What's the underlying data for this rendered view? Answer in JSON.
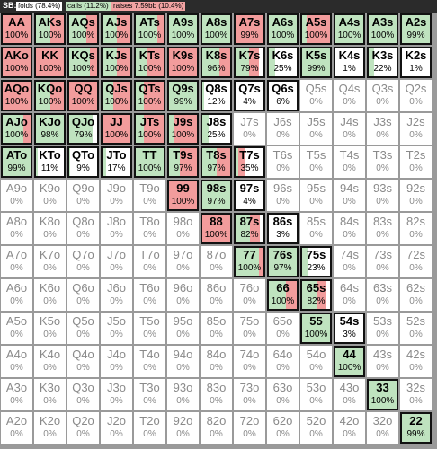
{
  "header": {
    "position_label": "SB:",
    "legend": [
      {
        "label": "folds (78.4%)",
        "color": "#ffffff"
      },
      {
        "label": "calls (11.2%)",
        "color": "#bfe3bf"
      },
      {
        "label": "raises 7.59bb (10.4%)",
        "color": "#f2a3a3"
      }
    ]
  },
  "colors": {
    "call": "#bfe3bf",
    "raise": "#f29c9c",
    "fold": "#ffffff"
  },
  "cells": [
    [
      {
        "hand": "AA",
        "pct": "100%",
        "c": 0,
        "r": 1
      },
      {
        "hand": "AKs",
        "pct": "100%",
        "c": 0.5,
        "r": 0.5
      },
      {
        "hand": "AQs",
        "pct": "100%",
        "c": 0.6,
        "r": 0.4
      },
      {
        "hand": "AJs",
        "pct": "100%",
        "c": 0.5,
        "r": 0.5
      },
      {
        "hand": "ATs",
        "pct": "100%",
        "c": 0.75,
        "r": 0.25
      },
      {
        "hand": "A9s",
        "pct": "100%",
        "c": 1,
        "r": 0
      },
      {
        "hand": "A8s",
        "pct": "100%",
        "c": 1,
        "r": 0
      },
      {
        "hand": "A7s",
        "pct": "99%",
        "c": 0,
        "r": 0.99
      },
      {
        "hand": "A6s",
        "pct": "100%",
        "c": 1,
        "r": 0
      },
      {
        "hand": "A5s",
        "pct": "100%",
        "c": 0.2,
        "r": 0.8
      },
      {
        "hand": "A4s",
        "pct": "100%",
        "c": 1,
        "r": 0
      },
      {
        "hand": "A3s",
        "pct": "100%",
        "c": 1,
        "r": 0
      },
      {
        "hand": "A2s",
        "pct": "99%",
        "c": 0.99,
        "r": 0
      }
    ],
    [
      {
        "hand": "AKo",
        "pct": "100%",
        "c": 0,
        "r": 1
      },
      {
        "hand": "KK",
        "pct": "100%",
        "c": 0,
        "r": 1
      },
      {
        "hand": "KQs",
        "pct": "100%",
        "c": 0.7,
        "r": 0.3
      },
      {
        "hand": "KJs",
        "pct": "100%",
        "c": 0.5,
        "r": 0.5
      },
      {
        "hand": "KTs",
        "pct": "100%",
        "c": 0.4,
        "r": 0.6
      },
      {
        "hand": "K9s",
        "pct": "100%",
        "c": 0,
        "r": 1
      },
      {
        "hand": "K8s",
        "pct": "96%",
        "c": 0.6,
        "r": 0.36
      },
      {
        "hand": "K7s",
        "pct": "79%",
        "c": 0.49,
        "r": 0.3
      },
      {
        "hand": "K6s",
        "pct": "25%",
        "c": 0.25,
        "r": 0
      },
      {
        "hand": "K5s",
        "pct": "99%",
        "c": 0.99,
        "r": 0
      },
      {
        "hand": "K4s",
        "pct": "1%",
        "c": 0.01,
        "r": 0
      },
      {
        "hand": "K3s",
        "pct": "22%",
        "c": 0.22,
        "r": 0
      },
      {
        "hand": "K2s",
        "pct": "1%",
        "c": 0.01,
        "r": 0
      }
    ],
    [
      {
        "hand": "AQo",
        "pct": "100%",
        "c": 0,
        "r": 1
      },
      {
        "hand": "KQo",
        "pct": "100%",
        "c": 0.5,
        "r": 0.5
      },
      {
        "hand": "QQ",
        "pct": "100%",
        "c": 0,
        "r": 1
      },
      {
        "hand": "QJs",
        "pct": "100%",
        "c": 0.4,
        "r": 0.6
      },
      {
        "hand": "QTs",
        "pct": "100%",
        "c": 0.3,
        "r": 0.7
      },
      {
        "hand": "Q9s",
        "pct": "99%",
        "c": 0.99,
        "r": 0
      },
      {
        "hand": "Q8s",
        "pct": "12%",
        "c": 0.12,
        "r": 0
      },
      {
        "hand": "Q7s",
        "pct": "4%",
        "c": 0.04,
        "r": 0
      },
      {
        "hand": "Q6s",
        "pct": "6%",
        "c": 0.06,
        "r": 0
      },
      {
        "hand": "Q5s",
        "pct": "0%",
        "c": 0,
        "r": 0
      },
      {
        "hand": "Q4s",
        "pct": "0%",
        "c": 0,
        "r": 0
      },
      {
        "hand": "Q3s",
        "pct": "0%",
        "c": 0,
        "r": 0
      },
      {
        "hand": "Q2s",
        "pct": "0%",
        "c": 0,
        "r": 0
      }
    ],
    [
      {
        "hand": "AJo",
        "pct": "100%",
        "c": 0.7,
        "r": 0.3
      },
      {
        "hand": "KJo",
        "pct": "98%",
        "c": 0.98,
        "r": 0
      },
      {
        "hand": "QJo",
        "pct": "79%",
        "c": 0.79,
        "r": 0
      },
      {
        "hand": "JJ",
        "pct": "100%",
        "c": 0,
        "r": 1
      },
      {
        "hand": "JTs",
        "pct": "100%",
        "c": 0.3,
        "r": 0.7
      },
      {
        "hand": "J9s",
        "pct": "100%",
        "c": 0.2,
        "r": 0.8
      },
      {
        "hand": "J8s",
        "pct": "25%",
        "c": 0.25,
        "r": 0
      },
      {
        "hand": "J7s",
        "pct": "0%",
        "c": 0,
        "r": 0
      },
      {
        "hand": "J6s",
        "pct": "0%",
        "c": 0,
        "r": 0
      },
      {
        "hand": "J5s",
        "pct": "0%",
        "c": 0,
        "r": 0
      },
      {
        "hand": "J4s",
        "pct": "0%",
        "c": 0,
        "r": 0
      },
      {
        "hand": "J3s",
        "pct": "0%",
        "c": 0,
        "r": 0
      },
      {
        "hand": "J2s",
        "pct": "0%",
        "c": 0,
        "r": 0
      }
    ],
    [
      {
        "hand": "ATo",
        "pct": "99%",
        "c": 0.99,
        "r": 0
      },
      {
        "hand": "KTo",
        "pct": "11%",
        "c": 0.11,
        "r": 0
      },
      {
        "hand": "QTo",
        "pct": "9%",
        "c": 0.09,
        "r": 0
      },
      {
        "hand": "JTo",
        "pct": "17%",
        "c": 0.17,
        "r": 0
      },
      {
        "hand": "TT",
        "pct": "100%",
        "c": 1,
        "r": 0
      },
      {
        "hand": "T9s",
        "pct": "97%",
        "c": 0.4,
        "r": 0.57
      },
      {
        "hand": "T8s",
        "pct": "97%",
        "c": 0.5,
        "r": 0.47
      },
      {
        "hand": "T7s",
        "pct": "35%",
        "c": 0.15,
        "r": 0.2
      },
      {
        "hand": "T6s",
        "pct": "0%",
        "c": 0,
        "r": 0
      },
      {
        "hand": "T5s",
        "pct": "0%",
        "c": 0,
        "r": 0
      },
      {
        "hand": "T4s",
        "pct": "0%",
        "c": 0,
        "r": 0
      },
      {
        "hand": "T3s",
        "pct": "0%",
        "c": 0,
        "r": 0
      },
      {
        "hand": "T2s",
        "pct": "0%",
        "c": 0,
        "r": 0
      }
    ],
    [
      {
        "hand": "A9o",
        "pct": "0%",
        "c": 0,
        "r": 0
      },
      {
        "hand": "K9o",
        "pct": "0%",
        "c": 0,
        "r": 0
      },
      {
        "hand": "Q9o",
        "pct": "0%",
        "c": 0,
        "r": 0
      },
      {
        "hand": "J9o",
        "pct": "0%",
        "c": 0,
        "r": 0
      },
      {
        "hand": "T9o",
        "pct": "0%",
        "c": 0,
        "r": 0
      },
      {
        "hand": "99",
        "pct": "100%",
        "c": 0,
        "r": 1
      },
      {
        "hand": "98s",
        "pct": "97%",
        "c": 0.97,
        "r": 0
      },
      {
        "hand": "97s",
        "pct": "4%",
        "c": 0.04,
        "r": 0
      },
      {
        "hand": "96s",
        "pct": "0%",
        "c": 0,
        "r": 0
      },
      {
        "hand": "95s",
        "pct": "0%",
        "c": 0,
        "r": 0
      },
      {
        "hand": "94s",
        "pct": "0%",
        "c": 0,
        "r": 0
      },
      {
        "hand": "93s",
        "pct": "0%",
        "c": 0,
        "r": 0
      },
      {
        "hand": "92s",
        "pct": "0%",
        "c": 0,
        "r": 0
      }
    ],
    [
      {
        "hand": "A8o",
        "pct": "0%",
        "c": 0,
        "r": 0
      },
      {
        "hand": "K8o",
        "pct": "0%",
        "c": 0,
        "r": 0
      },
      {
        "hand": "Q8o",
        "pct": "0%",
        "c": 0,
        "r": 0
      },
      {
        "hand": "J8o",
        "pct": "0%",
        "c": 0,
        "r": 0
      },
      {
        "hand": "T8o",
        "pct": "0%",
        "c": 0,
        "r": 0
      },
      {
        "hand": "98o",
        "pct": "0%",
        "c": 0,
        "r": 0
      },
      {
        "hand": "88",
        "pct": "100%",
        "c": 0,
        "r": 1
      },
      {
        "hand": "87s",
        "pct": "82%",
        "c": 0.5,
        "r": 0.32
      },
      {
        "hand": "86s",
        "pct": "3%",
        "c": 0.03,
        "r": 0
      },
      {
        "hand": "85s",
        "pct": "0%",
        "c": 0,
        "r": 0
      },
      {
        "hand": "84s",
        "pct": "0%",
        "c": 0,
        "r": 0
      },
      {
        "hand": "83s",
        "pct": "0%",
        "c": 0,
        "r": 0
      },
      {
        "hand": "82s",
        "pct": "0%",
        "c": 0,
        "r": 0
      }
    ],
    [
      {
        "hand": "A7o",
        "pct": "0%",
        "c": 0,
        "r": 0
      },
      {
        "hand": "K7o",
        "pct": "0%",
        "c": 0,
        "r": 0
      },
      {
        "hand": "Q7o",
        "pct": "0%",
        "c": 0,
        "r": 0
      },
      {
        "hand": "J7o",
        "pct": "0%",
        "c": 0,
        "r": 0
      },
      {
        "hand": "T7o",
        "pct": "0%",
        "c": 0,
        "r": 0
      },
      {
        "hand": "97o",
        "pct": "0%",
        "c": 0,
        "r": 0
      },
      {
        "hand": "87o",
        "pct": "0%",
        "c": 0,
        "r": 0
      },
      {
        "hand": "77",
        "pct": "100%",
        "c": 0.8,
        "r": 0.2
      },
      {
        "hand": "76s",
        "pct": "97%",
        "c": 0.97,
        "r": 0
      },
      {
        "hand": "75s",
        "pct": "23%",
        "c": 0.23,
        "r": 0
      },
      {
        "hand": "74s",
        "pct": "0%",
        "c": 0,
        "r": 0
      },
      {
        "hand": "73s",
        "pct": "0%",
        "c": 0,
        "r": 0
      },
      {
        "hand": "72s",
        "pct": "0%",
        "c": 0,
        "r": 0
      }
    ],
    [
      {
        "hand": "A6o",
        "pct": "0%",
        "c": 0,
        "r": 0
      },
      {
        "hand": "K6o",
        "pct": "0%",
        "c": 0,
        "r": 0
      },
      {
        "hand": "Q6o",
        "pct": "0%",
        "c": 0,
        "r": 0
      },
      {
        "hand": "J6o",
        "pct": "0%",
        "c": 0,
        "r": 0
      },
      {
        "hand": "T6o",
        "pct": "0%",
        "c": 0,
        "r": 0
      },
      {
        "hand": "96o",
        "pct": "0%",
        "c": 0,
        "r": 0
      },
      {
        "hand": "86o",
        "pct": "0%",
        "c": 0,
        "r": 0
      },
      {
        "hand": "76o",
        "pct": "0%",
        "c": 0,
        "r": 0
      },
      {
        "hand": "66",
        "pct": "100%",
        "c": 0.6,
        "r": 0.4
      },
      {
        "hand": "65s",
        "pct": "82%",
        "c": 0.5,
        "r": 0.32
      },
      {
        "hand": "64s",
        "pct": "0%",
        "c": 0,
        "r": 0
      },
      {
        "hand": "63s",
        "pct": "0%",
        "c": 0,
        "r": 0
      },
      {
        "hand": "62s",
        "pct": "0%",
        "c": 0,
        "r": 0
      }
    ],
    [
      {
        "hand": "A5o",
        "pct": "0%",
        "c": 0,
        "r": 0
      },
      {
        "hand": "K5o",
        "pct": "0%",
        "c": 0,
        "r": 0
      },
      {
        "hand": "Q5o",
        "pct": "0%",
        "c": 0,
        "r": 0
      },
      {
        "hand": "J5o",
        "pct": "0%",
        "c": 0,
        "r": 0
      },
      {
        "hand": "T5o",
        "pct": "0%",
        "c": 0,
        "r": 0
      },
      {
        "hand": "95o",
        "pct": "0%",
        "c": 0,
        "r": 0
      },
      {
        "hand": "85o",
        "pct": "0%",
        "c": 0,
        "r": 0
      },
      {
        "hand": "75o",
        "pct": "0%",
        "c": 0,
        "r": 0
      },
      {
        "hand": "65o",
        "pct": "0%",
        "c": 0,
        "r": 0
      },
      {
        "hand": "55",
        "pct": "100%",
        "c": 1,
        "r": 0
      },
      {
        "hand": "54s",
        "pct": "3%",
        "c": 0.03,
        "r": 0
      },
      {
        "hand": "53s",
        "pct": "0%",
        "c": 0,
        "r": 0
      },
      {
        "hand": "52s",
        "pct": "0%",
        "c": 0,
        "r": 0
      }
    ],
    [
      {
        "hand": "A4o",
        "pct": "0%",
        "c": 0,
        "r": 0
      },
      {
        "hand": "K4o",
        "pct": "0%",
        "c": 0,
        "r": 0
      },
      {
        "hand": "Q4o",
        "pct": "0%",
        "c": 0,
        "r": 0
      },
      {
        "hand": "J4o",
        "pct": "0%",
        "c": 0,
        "r": 0
      },
      {
        "hand": "T4o",
        "pct": "0%",
        "c": 0,
        "r": 0
      },
      {
        "hand": "94o",
        "pct": "0%",
        "c": 0,
        "r": 0
      },
      {
        "hand": "84o",
        "pct": "0%",
        "c": 0,
        "r": 0
      },
      {
        "hand": "74o",
        "pct": "0%",
        "c": 0,
        "r": 0
      },
      {
        "hand": "64o",
        "pct": "0%",
        "c": 0,
        "r": 0
      },
      {
        "hand": "54o",
        "pct": "0%",
        "c": 0,
        "r": 0
      },
      {
        "hand": "44",
        "pct": "100%",
        "c": 1,
        "r": 0
      },
      {
        "hand": "43s",
        "pct": "0%",
        "c": 0,
        "r": 0
      },
      {
        "hand": "42s",
        "pct": "0%",
        "c": 0,
        "r": 0
      }
    ],
    [
      {
        "hand": "A3o",
        "pct": "0%",
        "c": 0,
        "r": 0
      },
      {
        "hand": "K3o",
        "pct": "0%",
        "c": 0,
        "r": 0
      },
      {
        "hand": "Q3o",
        "pct": "0%",
        "c": 0,
        "r": 0
      },
      {
        "hand": "J3o",
        "pct": "0%",
        "c": 0,
        "r": 0
      },
      {
        "hand": "T3o",
        "pct": "0%",
        "c": 0,
        "r": 0
      },
      {
        "hand": "93o",
        "pct": "0%",
        "c": 0,
        "r": 0
      },
      {
        "hand": "83o",
        "pct": "0%",
        "c": 0,
        "r": 0
      },
      {
        "hand": "73o",
        "pct": "0%",
        "c": 0,
        "r": 0
      },
      {
        "hand": "63o",
        "pct": "0%",
        "c": 0,
        "r": 0
      },
      {
        "hand": "53o",
        "pct": "0%",
        "c": 0,
        "r": 0
      },
      {
        "hand": "43o",
        "pct": "0%",
        "c": 0,
        "r": 0
      },
      {
        "hand": "33",
        "pct": "100%",
        "c": 1,
        "r": 0
      },
      {
        "hand": "32s",
        "pct": "0%",
        "c": 0,
        "r": 0
      }
    ],
    [
      {
        "hand": "A2o",
        "pct": "0%",
        "c": 0,
        "r": 0
      },
      {
        "hand": "K2o",
        "pct": "0%",
        "c": 0,
        "r": 0
      },
      {
        "hand": "Q2o",
        "pct": "0%",
        "c": 0,
        "r": 0
      },
      {
        "hand": "J2o",
        "pct": "0%",
        "c": 0,
        "r": 0
      },
      {
        "hand": "T2o",
        "pct": "0%",
        "c": 0,
        "r": 0
      },
      {
        "hand": "92o",
        "pct": "0%",
        "c": 0,
        "r": 0
      },
      {
        "hand": "82o",
        "pct": "0%",
        "c": 0,
        "r": 0
      },
      {
        "hand": "72o",
        "pct": "0%",
        "c": 0,
        "r": 0
      },
      {
        "hand": "62o",
        "pct": "0%",
        "c": 0,
        "r": 0
      },
      {
        "hand": "52o",
        "pct": "0%",
        "c": 0,
        "r": 0
      },
      {
        "hand": "42o",
        "pct": "0%",
        "c": 0,
        "r": 0
      },
      {
        "hand": "32o",
        "pct": "0%",
        "c": 0,
        "r": 0
      },
      {
        "hand": "22",
        "pct": "99%",
        "c": 0.99,
        "r": 0
      }
    ]
  ]
}
